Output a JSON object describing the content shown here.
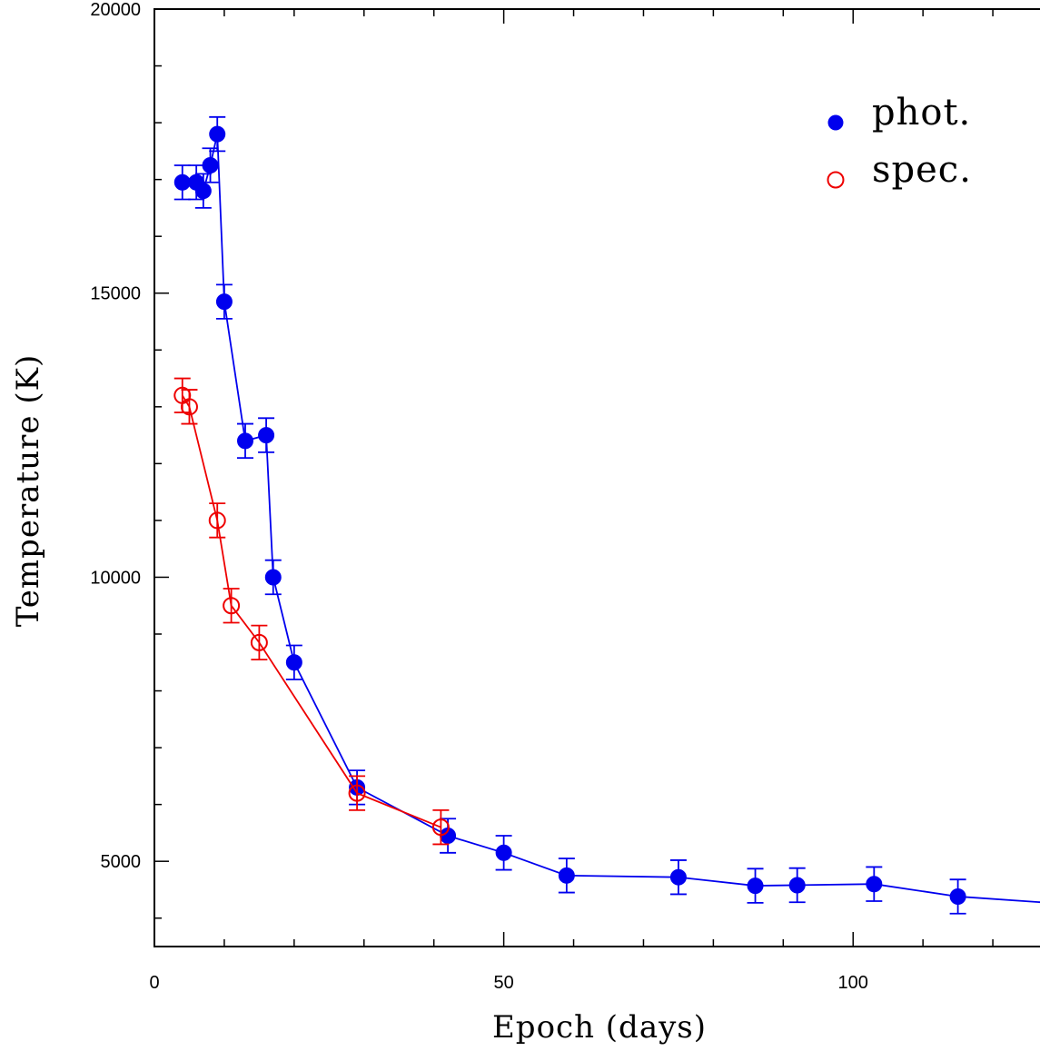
{
  "chart_data": {
    "type": "scatter",
    "xlabel": "Epoch (days)",
    "ylabel": "Temperature (K)",
    "xlim": [
      0,
      130
    ],
    "ylim": [
      3500,
      20000
    ],
    "x_ticks": [
      0,
      50,
      100
    ],
    "y_ticks": [
      5000,
      10000,
      15000,
      20000
    ],
    "legend_position": "top-right",
    "series": [
      {
        "name": "phot.",
        "marker": "filled-circle",
        "color": "#0000ee",
        "x": [
          4,
          6,
          7,
          8,
          9,
          10,
          13,
          16,
          17,
          20,
          29,
          42,
          50,
          59,
          75,
          86,
          92,
          103,
          115,
          128
        ],
        "y": [
          16950,
          16950,
          16800,
          17250,
          17800,
          14850,
          12400,
          12500,
          10000,
          8500,
          6300,
          5450,
          5150,
          4750,
          4720,
          4570,
          4580,
          4600,
          4380,
          4270
        ],
        "yerr": [
          300,
          300,
          300,
          300,
          300,
          300,
          300,
          300,
          300,
          300,
          300,
          300,
          300,
          300,
          300,
          300,
          300,
          300,
          300,
          300
        ]
      },
      {
        "name": "spec.",
        "marker": "open-circle",
        "color": "#ee0000",
        "x": [
          4,
          5,
          9,
          11,
          15,
          29,
          41
        ],
        "y": [
          13200,
          13000,
          11000,
          9500,
          8850,
          6200,
          5600
        ],
        "yerr": [
          300,
          300,
          300,
          300,
          300,
          300,
          300
        ]
      }
    ]
  }
}
